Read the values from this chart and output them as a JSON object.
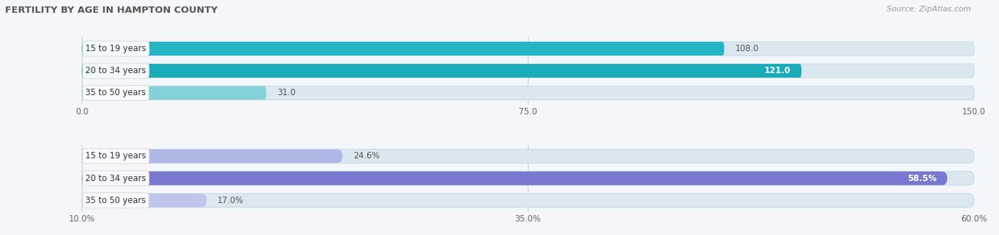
{
  "title": "FERTILITY BY AGE IN HAMPTON COUNTY",
  "source": "Source: ZipAtlas.com",
  "top_chart": {
    "categories": [
      "15 to 19 years",
      "20 to 34 years",
      "35 to 50 years"
    ],
    "values": [
      108.0,
      121.0,
      31.0
    ],
    "xlim": [
      0.0,
      150.0
    ],
    "xticks": [
      0.0,
      75.0,
      150.0
    ],
    "xtick_labels": [
      "0.0",
      "75.0",
      "150.0"
    ],
    "bar_colors": [
      "#23b5c2",
      "#1aabb8",
      "#82d2d8"
    ],
    "bar_bg_color": "#dce8f0"
  },
  "bottom_chart": {
    "categories": [
      "15 to 19 years",
      "20 to 34 years",
      "35 to 50 years"
    ],
    "values": [
      24.6,
      58.5,
      17.0
    ],
    "xlim": [
      10.0,
      60.0
    ],
    "xticks": [
      10.0,
      35.0,
      60.0
    ],
    "xtick_labels": [
      "10.0%",
      "35.0%",
      "60.0%"
    ],
    "bar_colors": [
      "#b0b8e8",
      "#7878d0",
      "#c0c5ec"
    ],
    "bar_bg_color": "#dce8f0"
  },
  "label_fontsize": 8.5,
  "value_fontsize": 8.5,
  "title_fontsize": 9.5,
  "source_fontsize": 8,
  "bar_height": 0.62,
  "label_color": "#333333",
  "value_color_inside": "#ffffff",
  "value_color_outside": "#555555",
  "bg_color": "#f4f7fa",
  "grid_color": "#aabbcc",
  "bar_gap": 0.18
}
